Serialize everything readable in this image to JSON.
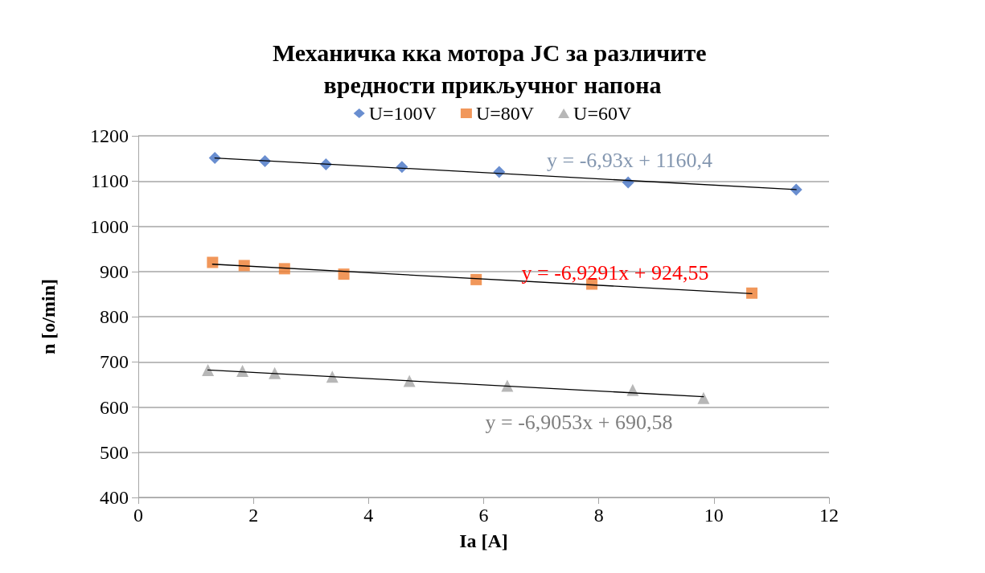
{
  "chart_data": {
    "type": "scatter",
    "title": "Механичка кка мотора JC за различите вредности прикључног напона",
    "xlabel": "Ia [A]",
    "ylabel": "n [o/min]",
    "series": [
      {
        "name": "U=100V",
        "color": "#4472c4",
        "marker": "diamond",
        "x": [
          1.33,
          2.2,
          3.26,
          4.58,
          6.27,
          8.51,
          11.43
        ],
        "values": [
          1151,
          1144,
          1137,
          1131,
          1120,
          1097,
          1081
        ]
      },
      {
        "name": "U=80V",
        "color": "#ed7d31",
        "marker": "square",
        "x": [
          1.29,
          1.84,
          2.54,
          3.57,
          5.87,
          7.88,
          10.66
        ],
        "values": [
          920,
          913,
          906,
          894,
          882,
          872,
          852
        ]
      },
      {
        "name": "U=60V",
        "color": "#a5a5a5",
        "marker": "triangle",
        "x": [
          1.21,
          1.81,
          2.37,
          3.37,
          4.71,
          6.41,
          8.59,
          9.82
        ],
        "values": [
          682,
          680,
          675,
          667,
          658,
          647,
          638,
          620
        ]
      },
      {
        "type": "line",
        "color": "#000000",
        "marker": "none",
        "x": [
          1.33,
          11.43
        ],
        "values": [
          1151,
          1081
        ]
      },
      {
        "type": "line",
        "color": "#000000",
        "marker": "none",
        "x": [
          1.29,
          10.66
        ],
        "values": [
          916,
          851
        ]
      },
      {
        "type": "line",
        "color": "#000000",
        "marker": "none",
        "x": [
          1.21,
          9.82
        ],
        "values": [
          682,
          623
        ]
      }
    ],
    "annotations": [
      "y = -6,93x + 1160,4",
      "y = -6,9291x + 924,55",
      "y = -6,9053x + 690,58"
    ],
    "xlim": [
      0,
      12
    ],
    "xticks": [
      0,
      2,
      4,
      6,
      8,
      10,
      12
    ],
    "ylim": [
      400,
      1200
    ],
    "yticks": [
      400,
      500,
      600,
      700,
      800,
      900,
      1000,
      1100,
      1200
    ],
    "grid": "y",
    "legend": "top"
  }
}
